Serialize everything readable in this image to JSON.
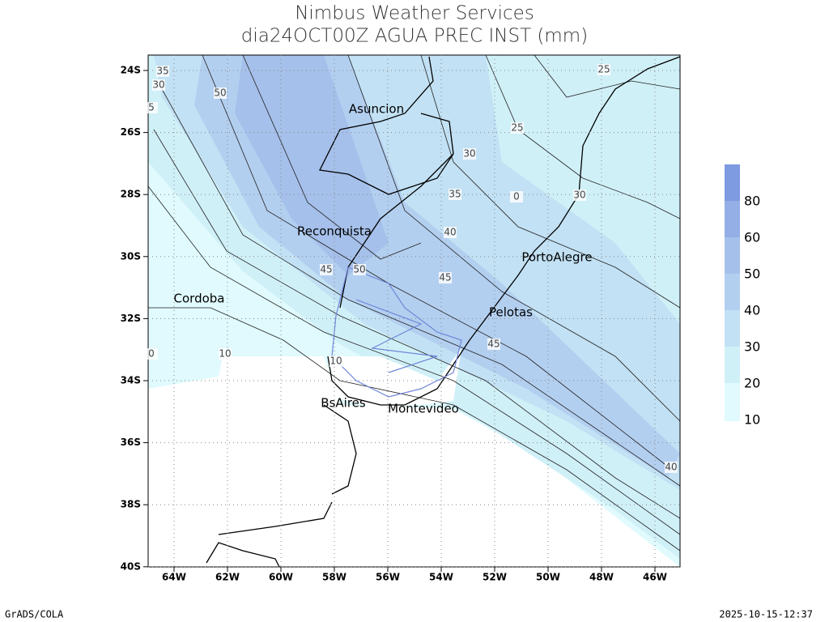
{
  "header": {
    "title": "Nimbus Weather Services",
    "subtitle": "dia24OCT00Z AGUA PREC INST (mm)"
  },
  "map": {
    "lat_labels": [
      "24S",
      "26S",
      "28S",
      "30S",
      "32S",
      "34S",
      "36S",
      "38S",
      "40S"
    ],
    "lon_labels": [
      "64W",
      "62W",
      "60W",
      "58W",
      "56W",
      "54W",
      "52W",
      "50W",
      "48W",
      "46W"
    ],
    "cities": [
      "Asuncion",
      "Reconquista",
      "PortoAlegre",
      "Cordoba",
      "Pelotas",
      "BsAires",
      "Montevideo"
    ],
    "contour_labels": [
      "35",
      "30",
      "5",
      "50",
      "25",
      "25",
      "30",
      "35",
      "0",
      "30",
      "40",
      "45",
      "50",
      "45",
      "45",
      "10",
      "10",
      "0",
      "40"
    ]
  },
  "colorbar": {
    "labels": [
      "10",
      "20",
      "30",
      "40",
      "50",
      "60",
      "80"
    ]
  },
  "footer": {
    "left": "GrADS/COLA",
    "right": "2025-10-15-12:37"
  }
}
